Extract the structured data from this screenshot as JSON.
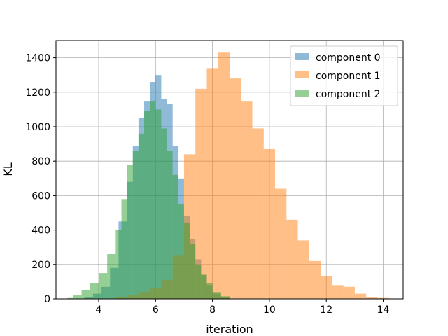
{
  "chart_data": {
    "type": "bar",
    "subtype": "histogram",
    "title": "",
    "xlabel": "iteration",
    "ylabel": "KL",
    "xlim": [
      2.5,
      14.7
    ],
    "ylim": [
      0,
      1500
    ],
    "xticks": [
      4,
      6,
      8,
      10,
      12,
      14
    ],
    "yticks": [
      0,
      200,
      400,
      600,
      800,
      1000,
      1200,
      1400
    ],
    "grid": true,
    "legend": {
      "placement": "top-right"
    },
    "alpha": 0.5,
    "series": [
      {
        "name": "component 0",
        "color": "#1f77b4",
        "bins": [
          [
            3.5,
            3.8,
            10
          ],
          [
            3.8,
            4.1,
            30
          ],
          [
            4.1,
            4.4,
            70
          ],
          [
            4.4,
            4.7,
            180
          ],
          [
            4.7,
            5.0,
            450
          ],
          [
            5.0,
            5.2,
            680
          ],
          [
            5.2,
            5.4,
            890
          ],
          [
            5.4,
            5.6,
            1050
          ],
          [
            5.6,
            5.8,
            1150
          ],
          [
            5.8,
            6.0,
            1260
          ],
          [
            6.0,
            6.2,
            1300
          ],
          [
            6.2,
            6.4,
            1160
          ],
          [
            6.4,
            6.6,
            1130
          ],
          [
            6.6,
            6.8,
            890
          ],
          [
            6.8,
            7.0,
            700
          ],
          [
            7.0,
            7.2,
            480
          ],
          [
            7.2,
            7.4,
            350
          ],
          [
            7.4,
            7.6,
            230
          ],
          [
            7.6,
            7.8,
            140
          ],
          [
            7.8,
            8.0,
            80
          ],
          [
            8.0,
            8.3,
            30
          ],
          [
            8.3,
            8.6,
            10
          ]
        ]
      },
      {
        "name": "component 1",
        "color": "#ff7f0e",
        "bins": [
          [
            4.6,
            5.0,
            10
          ],
          [
            5.0,
            5.4,
            20
          ],
          [
            5.4,
            5.8,
            40
          ],
          [
            5.8,
            6.2,
            60
          ],
          [
            6.2,
            6.6,
            110
          ],
          [
            6.6,
            7.0,
            250
          ],
          [
            7.0,
            7.4,
            840
          ],
          [
            7.4,
            7.8,
            1220
          ],
          [
            7.8,
            8.2,
            1340
          ],
          [
            8.2,
            8.6,
            1430
          ],
          [
            8.6,
            9.0,
            1280
          ],
          [
            9.0,
            9.4,
            1150
          ],
          [
            9.4,
            9.8,
            990
          ],
          [
            9.8,
            10.2,
            870
          ],
          [
            10.2,
            10.6,
            640
          ],
          [
            10.6,
            11.0,
            460
          ],
          [
            11.0,
            11.4,
            340
          ],
          [
            11.4,
            11.8,
            220
          ],
          [
            11.8,
            12.2,
            130
          ],
          [
            12.2,
            12.6,
            80
          ],
          [
            12.6,
            13.0,
            70
          ],
          [
            13.0,
            13.4,
            30
          ],
          [
            13.4,
            13.8,
            10
          ],
          [
            13.8,
            14.2,
            5
          ]
        ]
      },
      {
        "name": "component 2",
        "color": "#2ca02c",
        "bins": [
          [
            2.9,
            3.1,
            5
          ],
          [
            3.1,
            3.4,
            20
          ],
          [
            3.4,
            3.7,
            50
          ],
          [
            3.7,
            4.0,
            90
          ],
          [
            4.0,
            4.3,
            150
          ],
          [
            4.3,
            4.6,
            260
          ],
          [
            4.6,
            4.8,
            400
          ],
          [
            4.8,
            5.0,
            580
          ],
          [
            5.0,
            5.2,
            780
          ],
          [
            5.2,
            5.4,
            860
          ],
          [
            5.4,
            5.6,
            960
          ],
          [
            5.6,
            5.8,
            1090
          ],
          [
            5.8,
            6.0,
            1150
          ],
          [
            6.0,
            6.2,
            1100
          ],
          [
            6.2,
            6.4,
            990
          ],
          [
            6.4,
            6.6,
            860
          ],
          [
            6.6,
            6.8,
            720
          ],
          [
            6.8,
            7.0,
            550
          ],
          [
            7.0,
            7.2,
            440
          ],
          [
            7.2,
            7.4,
            320
          ],
          [
            7.4,
            7.6,
            200
          ],
          [
            7.6,
            7.8,
            140
          ],
          [
            7.8,
            8.0,
            90
          ],
          [
            8.0,
            8.3,
            40
          ],
          [
            8.3,
            8.6,
            15
          ]
        ]
      }
    ]
  }
}
